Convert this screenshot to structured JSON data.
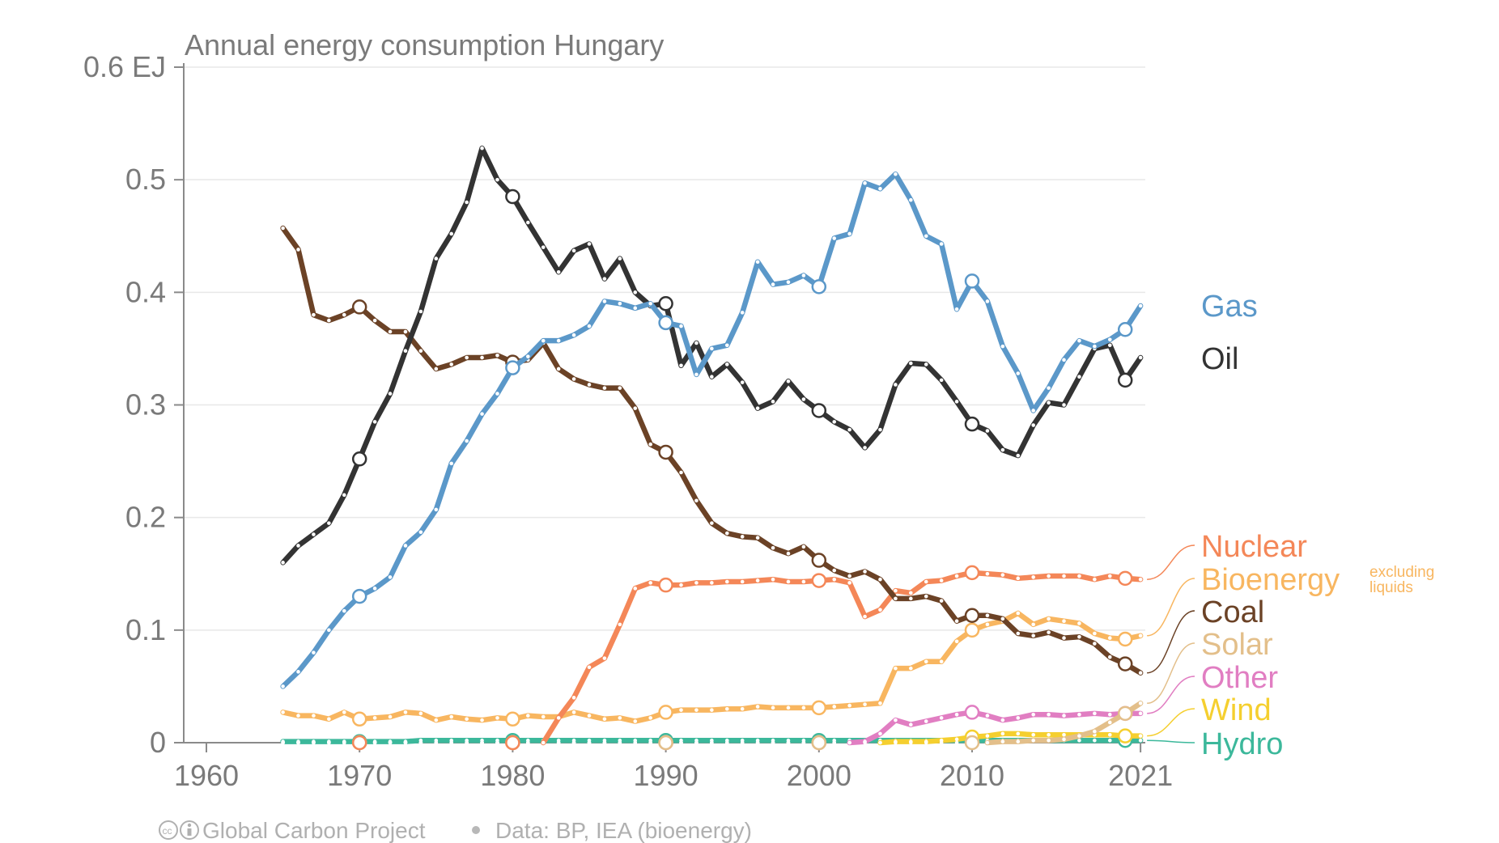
{
  "chart_data": {
    "type": "line",
    "title": "Annual energy consumption Hungary",
    "unit": "EJ",
    "xlim": [
      1960,
      2021
    ],
    "ylim": [
      0,
      0.6
    ],
    "x_ticks": [
      "1960",
      "1970",
      "1980",
      "1990",
      "2000",
      "2010",
      "2021"
    ],
    "y_ticks": [
      "0",
      "0.1",
      "0.2",
      "0.3",
      "0.4",
      "0.5",
      "0.6 EJ"
    ],
    "grid": true,
    "years": [
      1965,
      1966,
      1967,
      1968,
      1969,
      1970,
      1971,
      1972,
      1973,
      1974,
      1975,
      1976,
      1977,
      1978,
      1979,
      1980,
      1981,
      1982,
      1983,
      1984,
      1985,
      1986,
      1987,
      1988,
      1989,
      1990,
      1991,
      1992,
      1993,
      1994,
      1995,
      1996,
      1997,
      1998,
      1999,
      2000,
      2001,
      2002,
      2003,
      2004,
      2005,
      2006,
      2007,
      2008,
      2009,
      2010,
      2011,
      2012,
      2013,
      2014,
      2015,
      2016,
      2017,
      2018,
      2019,
      2020,
      2021
    ],
    "series": [
      {
        "name": "Gas",
        "color": "#5b98c9",
        "values": [
          0.05,
          0.063,
          0.08,
          0.1,
          0.117,
          0.13,
          0.137,
          0.147,
          0.175,
          0.187,
          0.207,
          0.248,
          0.268,
          0.292,
          0.31,
          0.333,
          0.343,
          0.357,
          0.357,
          0.362,
          0.37,
          0.392,
          0.39,
          0.386,
          0.39,
          0.373,
          0.37,
          0.327,
          0.35,
          0.353,
          0.382,
          0.427,
          0.407,
          0.409,
          0.415,
          0.405,
          0.448,
          0.452,
          0.497,
          0.492,
          0.505,
          0.482,
          0.45,
          0.443,
          0.385,
          0.41,
          0.392,
          0.352,
          0.328,
          0.295,
          0.315,
          0.34,
          0.357,
          0.352,
          0.358,
          0.367,
          0.388
        ]
      },
      {
        "name": "Oil",
        "color": "#333333",
        "values": [
          0.16,
          0.175,
          0.185,
          0.195,
          0.22,
          0.252,
          0.285,
          0.31,
          0.348,
          0.383,
          0.43,
          0.452,
          0.48,
          0.528,
          0.5,
          0.485,
          0.462,
          0.44,
          0.418,
          0.437,
          0.443,
          0.412,
          0.43,
          0.4,
          0.388,
          0.39,
          0.335,
          0.355,
          0.325,
          0.336,
          0.32,
          0.297,
          0.303,
          0.321,
          0.305,
          0.295,
          0.285,
          0.278,
          0.262,
          0.278,
          0.318,
          0.337,
          0.336,
          0.322,
          0.303,
          0.283,
          0.277,
          0.26,
          0.255,
          0.282,
          0.302,
          0.3,
          0.325,
          0.35,
          0.353,
          0.322,
          0.342
        ]
      },
      {
        "name": "Nuclear",
        "color": "#f48758",
        "values": [
          0,
          0,
          0,
          0,
          0,
          0,
          0,
          0,
          0,
          0,
          0,
          0,
          0,
          0,
          0,
          0,
          0,
          0,
          0.022,
          0.04,
          0.067,
          0.075,
          0.105,
          0.137,
          0.142,
          0.14,
          0.14,
          0.142,
          0.142,
          0.143,
          0.143,
          0.144,
          0.145,
          0.143,
          0.143,
          0.144,
          0.145,
          0.142,
          0.112,
          0.118,
          0.135,
          0.133,
          0.143,
          0.144,
          0.148,
          0.151,
          0.15,
          0.149,
          0.146,
          0.147,
          0.148,
          0.148,
          0.148,
          0.145,
          0.148,
          0.146,
          0.145
        ]
      },
      {
        "name": "Bioenergy",
        "note": "excluding liquids",
        "color": "#f8b660",
        "values": [
          0.027,
          0.024,
          0.024,
          0.021,
          0.027,
          0.021,
          0.022,
          0.023,
          0.027,
          0.026,
          0.02,
          0.023,
          0.021,
          0.02,
          0.022,
          0.021,
          0.024,
          0.023,
          0.023,
          0.027,
          0.024,
          0.021,
          0.022,
          0.019,
          0.022,
          0.027,
          0.029,
          0.029,
          0.029,
          0.03,
          0.03,
          0.032,
          0.031,
          0.031,
          0.031,
          0.031,
          0.032,
          0.033,
          0.034,
          0.035,
          0.066,
          0.066,
          0.072,
          0.072,
          0.09,
          0.1,
          0.105,
          0.108,
          0.115,
          0.105,
          0.11,
          0.108,
          0.106,
          0.097,
          0.093,
          0.092,
          0.095
        ]
      },
      {
        "name": "Coal",
        "color": "#6b4226",
        "values": [
          0.457,
          0.438,
          0.38,
          0.375,
          0.38,
          0.387,
          0.375,
          0.365,
          0.365,
          0.348,
          0.332,
          0.336,
          0.342,
          0.342,
          0.344,
          0.338,
          0.34,
          0.355,
          0.332,
          0.323,
          0.318,
          0.315,
          0.315,
          0.297,
          0.265,
          0.258,
          0.24,
          0.215,
          0.195,
          0.186,
          0.183,
          0.182,
          0.173,
          0.168,
          0.174,
          0.162,
          0.153,
          0.148,
          0.152,
          0.145,
          0.128,
          0.128,
          0.13,
          0.126,
          0.108,
          0.113,
          0.113,
          0.11,
          0.097,
          0.095,
          0.098,
          0.093,
          0.094,
          0.088,
          0.076,
          0.07,
          0.062
        ]
      },
      {
        "name": "Solar",
        "color": "#e3bf8a",
        "values": [
          0,
          0,
          0,
          0,
          0,
          0,
          0,
          0,
          0,
          0,
          0,
          0,
          0,
          0,
          0,
          0,
          0,
          0,
          0,
          0,
          0,
          0,
          0,
          0,
          0,
          0,
          0,
          0,
          0,
          0,
          0,
          0,
          0,
          0,
          0,
          0,
          0,
          0,
          0,
          0,
          0,
          0,
          0,
          0,
          0,
          0,
          0,
          0.001,
          0.001,
          0.002,
          0.002,
          0.003,
          0.006,
          0.01,
          0.018,
          0.026,
          0.035
        ]
      },
      {
        "name": "Other",
        "color": "#e17ec2",
        "values": [
          0,
          0,
          0,
          0,
          0,
          0,
          0,
          0,
          0,
          0,
          0,
          0,
          0,
          0,
          0,
          0,
          0,
          0,
          0,
          0,
          0,
          0,
          0,
          0,
          0,
          0,
          0,
          0,
          0,
          0,
          0,
          0,
          0,
          0,
          0,
          0,
          0,
          0,
          0.001,
          0.008,
          0.02,
          0.016,
          0.019,
          0.022,
          0.025,
          0.027,
          0.024,
          0.02,
          0.022,
          0.025,
          0.025,
          0.024,
          0.025,
          0.026,
          0.025,
          0.026,
          0.026
        ]
      },
      {
        "name": "Wind",
        "color": "#f5cf2f",
        "values": [
          0,
          0,
          0,
          0,
          0,
          0,
          0,
          0,
          0,
          0,
          0,
          0,
          0,
          0,
          0,
          0,
          0,
          0,
          0,
          0,
          0,
          0,
          0,
          0,
          0,
          0,
          0,
          0,
          0,
          0,
          0,
          0,
          0,
          0,
          0,
          0,
          0,
          0,
          0,
          0,
          0.001,
          0.001,
          0.001,
          0.002,
          0.003,
          0.005,
          0.006,
          0.008,
          0.008,
          0.007,
          0.007,
          0.007,
          0.007,
          0.007,
          0.007,
          0.006,
          0.006
        ]
      },
      {
        "name": "Hydro",
        "color": "#3cb89b",
        "values": [
          0.001,
          0.001,
          0.001,
          0.001,
          0.001,
          0.001,
          0.001,
          0.001,
          0.001,
          0.002,
          0.002,
          0.002,
          0.002,
          0.002,
          0.002,
          0.002,
          0.002,
          0.002,
          0.002,
          0.002,
          0.002,
          0.002,
          0.002,
          0.002,
          0.002,
          0.002,
          0.002,
          0.002,
          0.002,
          0.002,
          0.002,
          0.002,
          0.002,
          0.002,
          0.002,
          0.002,
          0.002,
          0.002,
          0.002,
          0.002,
          0.002,
          0.002,
          0.002,
          0.002,
          0.002,
          0.002,
          0.002,
          0.002,
          0.002,
          0.002,
          0.002,
          0.002,
          0.002,
          0.002,
          0.002,
          0.002,
          0.002
        ]
      }
    ],
    "footer": {
      "source": "Global Carbon Project",
      "data_credit": "Data: BP, IEA (bioenergy)"
    }
  }
}
